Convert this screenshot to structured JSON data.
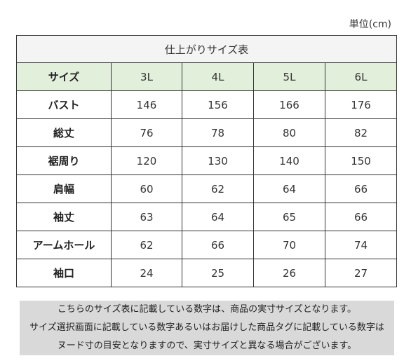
{
  "unit_label": "単位(cm)",
  "table": {
    "title": "仕上がりサイズ表",
    "header_label": "サイズ",
    "sizes": [
      "3L",
      "4L",
      "5L",
      "6L"
    ],
    "rows": [
      {
        "label": "バスト",
        "values": [
          "146",
          "156",
          "166",
          "176"
        ]
      },
      {
        "label": "総丈",
        "values": [
          "76",
          "78",
          "80",
          "82"
        ]
      },
      {
        "label": "裾周り",
        "values": [
          "120",
          "130",
          "140",
          "150"
        ]
      },
      {
        "label": "肩幅",
        "values": [
          "60",
          "62",
          "64",
          "66"
        ]
      },
      {
        "label": "袖丈",
        "values": [
          "63",
          "64",
          "65",
          "66"
        ]
      },
      {
        "label": "アームホール",
        "values": [
          "62",
          "66",
          "70",
          "74"
        ]
      },
      {
        "label": "袖口",
        "values": [
          "24",
          "25",
          "26",
          "27"
        ]
      }
    ]
  },
  "note": {
    "lines": [
      "こちらのサイズ表に記載している数字は、商品の実寸サイズとなります。",
      "サイズ選択画面に記載している数字あるいはお届けした商品タグに記載している数字は",
      "ヌード寸の目安となりますので、実寸サイズと異なる場合がございます。"
    ]
  },
  "colors": {
    "header_bg": "#e2efda",
    "title_bg": "#f4f4f4",
    "note_bg": "#d9d9d9",
    "border": "#333333"
  }
}
